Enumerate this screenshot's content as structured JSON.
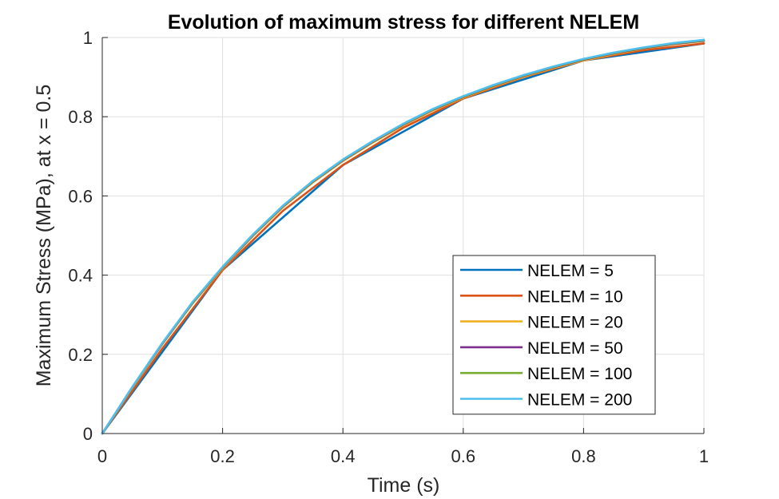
{
  "chart_data": {
    "type": "line",
    "title": "Evolution of maximum stress for different NELEM",
    "xlabel": "Time (s)",
    "ylabel": "Maximum Stress (MPa), at x = 0.5",
    "xlim": [
      0,
      1
    ],
    "ylim": [
      0,
      1
    ],
    "xticks": [
      "0",
      "0.2",
      "0.4",
      "0.6",
      "0.8",
      "1"
    ],
    "yticks": [
      "0",
      "0.2",
      "0.4",
      "0.6",
      "0.8",
      "1"
    ],
    "grid": true,
    "box": false,
    "legend_position": "lower-right",
    "series": [
      {
        "name": "NELEM = 5",
        "color": "#0072BD",
        "x": [
          0,
          0.2,
          0.4,
          0.6,
          0.8,
          1.0
        ],
        "y": [
          0,
          0.413,
          0.678,
          0.846,
          0.942,
          0.985
        ]
      },
      {
        "name": "NELEM = 10",
        "color": "#D95319",
        "x": [
          0,
          0.1,
          0.2,
          0.3,
          0.4,
          0.5,
          0.6,
          0.7,
          0.8,
          0.9,
          1.0
        ],
        "y": [
          0,
          0.215,
          0.413,
          0.562,
          0.678,
          0.772,
          0.846,
          0.9,
          0.942,
          0.968,
          0.985
        ]
      },
      {
        "name": "NELEM = 20",
        "color": "#EDB120",
        "x": [
          0,
          0.05,
          0.1,
          0.15,
          0.2,
          0.25,
          0.3,
          0.35,
          0.4,
          0.45,
          0.5,
          0.55,
          0.6,
          0.65,
          0.7,
          0.75,
          0.8,
          0.85,
          0.9,
          0.95,
          1.0
        ],
        "y": [
          0,
          0.116,
          0.226,
          0.328,
          0.417,
          0.498,
          0.571,
          0.634,
          0.688,
          0.735,
          0.778,
          0.816,
          0.848,
          0.876,
          0.901,
          0.923,
          0.942,
          0.958,
          0.972,
          0.983,
          0.991
        ]
      },
      {
        "name": "NELEM = 50",
        "color": "#7E2F8E",
        "x": [
          0,
          0.05,
          0.1,
          0.15,
          0.2,
          0.25,
          0.3,
          0.35,
          0.4,
          0.45,
          0.5,
          0.55,
          0.6,
          0.65,
          0.7,
          0.75,
          0.8,
          0.85,
          0.9,
          0.95,
          1.0
        ],
        "y": [
          0,
          0.117,
          0.227,
          0.33,
          0.419,
          0.5,
          0.573,
          0.636,
          0.69,
          0.737,
          0.78,
          0.818,
          0.85,
          0.878,
          0.903,
          0.925,
          0.944,
          0.96,
          0.973,
          0.984,
          0.992
        ]
      },
      {
        "name": "NELEM = 100",
        "color": "#77AC30",
        "x": [
          0,
          0.05,
          0.1,
          0.15,
          0.2,
          0.25,
          0.3,
          0.35,
          0.4,
          0.45,
          0.5,
          0.55,
          0.6,
          0.65,
          0.7,
          0.75,
          0.8,
          0.85,
          0.9,
          0.95,
          1.0
        ],
        "y": [
          0,
          0.117,
          0.228,
          0.331,
          0.42,
          0.501,
          0.574,
          0.637,
          0.691,
          0.738,
          0.781,
          0.819,
          0.851,
          0.879,
          0.904,
          0.926,
          0.945,
          0.961,
          0.974,
          0.985,
          0.993
        ]
      },
      {
        "name": "NELEM = 200",
        "color": "#4DBEEE",
        "x": [
          0,
          0.05,
          0.1,
          0.15,
          0.2,
          0.25,
          0.3,
          0.35,
          0.4,
          0.45,
          0.5,
          0.55,
          0.6,
          0.65,
          0.7,
          0.75,
          0.8,
          0.85,
          0.9,
          0.95,
          1.0
        ],
        "y": [
          0,
          0.118,
          0.229,
          0.332,
          0.421,
          0.502,
          0.575,
          0.638,
          0.692,
          0.739,
          0.782,
          0.82,
          0.852,
          0.88,
          0.905,
          0.927,
          0.946,
          0.962,
          0.975,
          0.986,
          0.994
        ]
      }
    ]
  }
}
